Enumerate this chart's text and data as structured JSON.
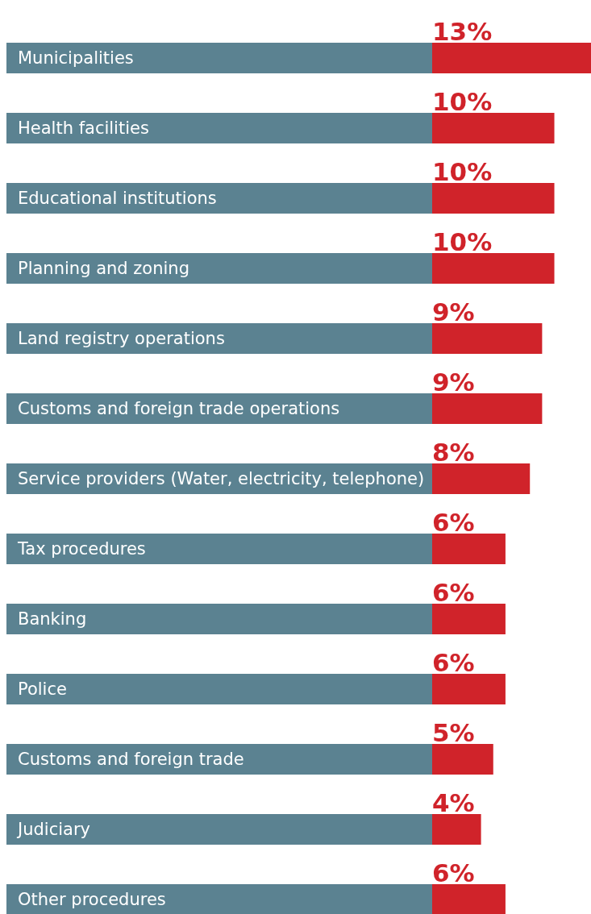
{
  "chart_data": {
    "type": "bar",
    "orientation": "horizontal",
    "categories": [
      "Municipalities",
      "Health facilities",
      "Educational institutions",
      "Planning and zoning",
      "Land registry operations",
      "Customs and foreign trade operations",
      "Service providers (Water, electricity, telephone)",
      "Tax procedures",
      "Banking",
      "Police",
      "Customs and foreign trade",
      "Judiciary",
      "Other procedures"
    ],
    "values": [
      13,
      10,
      10,
      10,
      9,
      9,
      8,
      6,
      6,
      6,
      5,
      4,
      6
    ],
    "value_labels": [
      "13%",
      "10%",
      "10%",
      "10%",
      "9%",
      "9%",
      "8%",
      "6%",
      "6%",
      "6%",
      "5%",
      "4%",
      "6%"
    ],
    "color": "#d0232a"
  }
}
